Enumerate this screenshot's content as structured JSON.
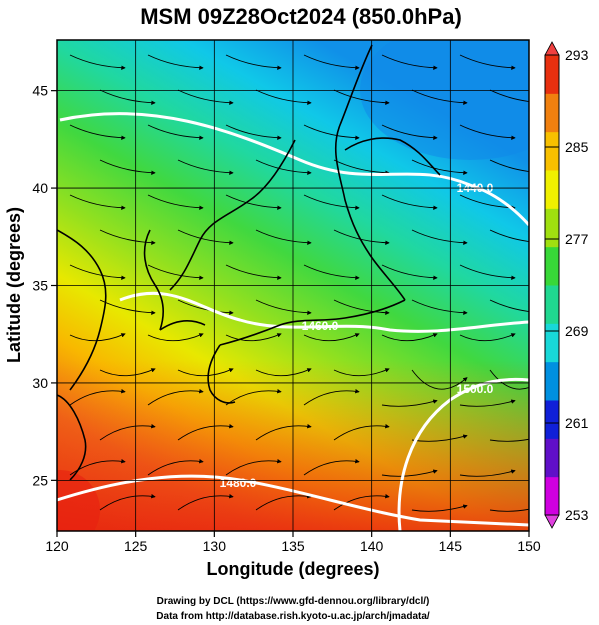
{
  "title": "MSM 09Z28Oct2024 (850.0hPa)",
  "x_axis": {
    "label": "Longitude (degrees)",
    "range": [
      120,
      150
    ],
    "ticks": [
      "120",
      "125",
      "130",
      "135",
      "140",
      "145",
      "150"
    ]
  },
  "y_axis": {
    "label": "Latitude  (degrees)",
    "range": [
      22.4,
      47.6
    ],
    "ticks": [
      "25",
      "30",
      "35",
      "40",
      "45"
    ]
  },
  "colorbar": {
    "range": [
      253,
      293
    ],
    "tick_labels": [
      "293",
      "285",
      "277",
      "269",
      "261",
      "253"
    ],
    "colors": [
      "#d000e0",
      "#6010c8",
      "#1020d8",
      "#0090e0",
      "#18d8d8",
      "#20d890",
      "#38d838",
      "#a0e010",
      "#f0f000",
      "#f8c000",
      "#f08010",
      "#e83010"
    ]
  },
  "contours": [
    {
      "label": "1480.0"
    },
    {
      "label": "1500.0"
    },
    {
      "label": "1440.0"
    },
    {
      "label": "1460.0"
    }
  ],
  "credits": {
    "line1": "Drawing by DCL (https://www.gfd-dennou.org/library/dcl/)",
    "line2": "Data from http://database.rish.kyoto-u.ac.jp/arch/jmadata/"
  }
}
